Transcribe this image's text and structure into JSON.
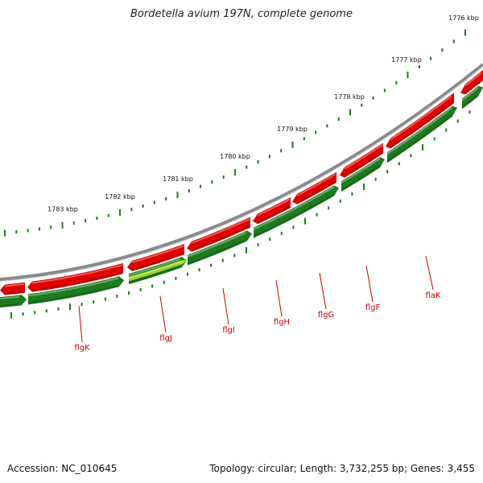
{
  "title": "Bordetella avium 197N, complete genome",
  "footer": {
    "accession": "Accession: NC_010645",
    "summary": "Topology: circular; Length: 3,732,255 bp; Genes: 3,455"
  },
  "colors": {
    "forward_strand": "#e00000",
    "reverse_strand": "#1e7a1e",
    "highlight": "#b4f020",
    "backbone": "#8a8a8a",
    "ticks": "#1e7a1e",
    "label": "#cc0000"
  },
  "kbp_labels": [
    "1783 kbp",
    "1782 kbp",
    "1781 kbp",
    "1780 kbp",
    "1779 kbp",
    "1778 kbp",
    "1777 kbp",
    "1776 kbp"
  ],
  "gene_labels": [
    "flgK",
    "flgJ",
    "flgI",
    "flgH",
    "flgG",
    "flgF",
    "flaK"
  ]
}
